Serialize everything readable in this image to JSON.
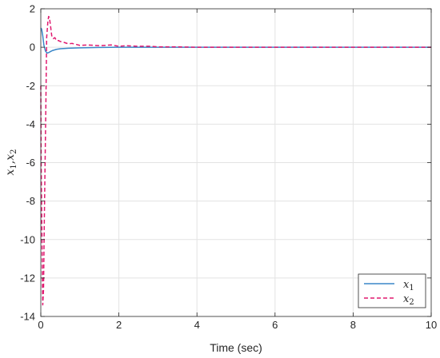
{
  "chart_data": {
    "type": "line",
    "xlabel": "Time (sec)",
    "ylabel": "x1,x2",
    "xlim": [
      0,
      10
    ],
    "ylim": [
      -14,
      2
    ],
    "xticks": [
      0,
      2,
      4,
      6,
      8,
      10
    ],
    "yticks": [
      2,
      0,
      -2,
      -4,
      -6,
      -8,
      -10,
      -12,
      -14
    ],
    "grid": true,
    "legend_position": "bottom-right",
    "series": [
      {
        "name": "x1",
        "color": "#3a87c8",
        "style": "solid",
        "x": [
          0,
          0.02,
          0.05,
          0.08,
          0.12,
          0.16,
          0.2,
          0.25,
          0.3,
          0.4,
          0.5,
          0.7,
          1.0,
          1.5,
          2.0,
          3.0,
          4.0,
          6.0,
          8.0,
          10.0
        ],
        "y": [
          1.0,
          0.95,
          0.6,
          0.1,
          -0.2,
          -0.3,
          -0.28,
          -0.22,
          -0.17,
          -0.11,
          -0.08,
          -0.05,
          -0.03,
          -0.01,
          0,
          0,
          0,
          0,
          0,
          0
        ]
      },
      {
        "name": "x2",
        "color": "#e0196e",
        "style": "dashed",
        "x": [
          0,
          0.01,
          0.03,
          0.05,
          0.07,
          0.09,
          0.11,
          0.13,
          0.15,
          0.18,
          0.2,
          0.22,
          0.25,
          0.28,
          0.32,
          0.36,
          0.4,
          0.45,
          0.5,
          0.6,
          0.7,
          0.8,
          1.0,
          1.2,
          1.5,
          1.8,
          2.0,
          2.2,
          2.5,
          2.8,
          3.0,
          3.5,
          4.0,
          6.0,
          8.0,
          10.0
        ],
        "y": [
          -2.0,
          -6.0,
          -10.0,
          -13.4,
          -12.6,
          -9.0,
          -6.0,
          -3.0,
          0.5,
          1.3,
          1.6,
          1.55,
          1.1,
          0.6,
          0.45,
          0.5,
          0.35,
          0.35,
          0.3,
          0.25,
          0.18,
          0.2,
          0.1,
          0.12,
          0.08,
          0.12,
          0.05,
          0.08,
          0.05,
          0.05,
          0.02,
          0.02,
          0,
          0,
          0,
          0
        ]
      }
    ]
  }
}
